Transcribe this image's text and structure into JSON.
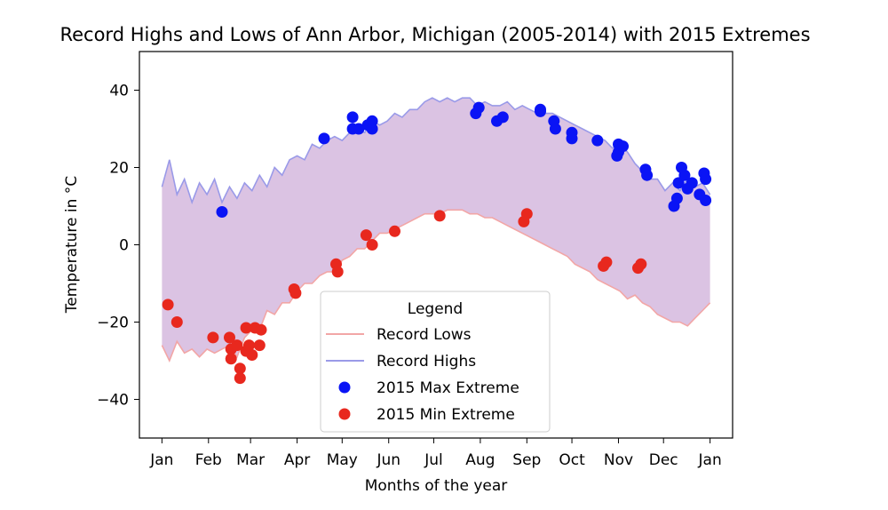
{
  "chart_data": {
    "type": "line",
    "title": "Record Highs and Lows of Ann Arbor, Michigan (2005-2014) with 2015 Extremes",
    "xlabel": "Months of the year",
    "ylabel": "Temperature in °C",
    "xlim": [
      -15,
      380
    ],
    "ylim": [
      -50,
      50
    ],
    "x_ticks": [
      {
        "day": 0,
        "label": "Jan"
      },
      {
        "day": 31,
        "label": "Feb"
      },
      {
        "day": 59,
        "label": "Mar"
      },
      {
        "day": 90,
        "label": "Apr"
      },
      {
        "day": 120,
        "label": "May"
      },
      {
        "day": 151,
        "label": "Jun"
      },
      {
        "day": 181,
        "label": "Jul"
      },
      {
        "day": 212,
        "label": "Aug"
      },
      {
        "day": 243,
        "label": "Sep"
      },
      {
        "day": 273,
        "label": "Oct"
      },
      {
        "day": 304,
        "label": "Nov"
      },
      {
        "day": 334,
        "label": "Dec"
      },
      {
        "day": 365,
        "label": "Jan"
      }
    ],
    "y_ticks": [
      -40,
      -20,
      0,
      20,
      40
    ],
    "colors": {
      "low_line": "#f2a6a6",
      "high_line": "#9a9ae8",
      "fill": "#d7bce0",
      "max_point": "#0a14f5",
      "min_point": "#e8281e"
    },
    "legend": {
      "title": "Legend",
      "placement": "lower-center",
      "entries": [
        "Record Lows",
        "Record Highs",
        "2015 Max Extreme",
        "2015 Min Extreme"
      ]
    },
    "series": [
      {
        "name": "Record Highs",
        "points": [
          [
            0,
            15
          ],
          [
            5,
            22
          ],
          [
            10,
            13
          ],
          [
            15,
            17
          ],
          [
            20,
            11
          ],
          [
            25,
            16
          ],
          [
            30,
            13
          ],
          [
            35,
            17
          ],
          [
            40,
            11
          ],
          [
            45,
            15
          ],
          [
            50,
            12
          ],
          [
            55,
            16
          ],
          [
            60,
            14
          ],
          [
            65,
            18
          ],
          [
            70,
            15
          ],
          [
            75,
            20
          ],
          [
            80,
            18
          ],
          [
            85,
            22
          ],
          [
            90,
            23
          ],
          [
            95,
            22
          ],
          [
            100,
            26
          ],
          [
            105,
            25
          ],
          [
            110,
            27
          ],
          [
            115,
            28
          ],
          [
            120,
            27
          ],
          [
            125,
            29
          ],
          [
            130,
            30
          ],
          [
            135,
            29
          ],
          [
            140,
            32
          ],
          [
            145,
            31
          ],
          [
            150,
            32
          ],
          [
            155,
            34
          ],
          [
            160,
            33
          ],
          [
            165,
            35
          ],
          [
            170,
            35
          ],
          [
            175,
            37
          ],
          [
            180,
            38
          ],
          [
            185,
            37
          ],
          [
            190,
            38
          ],
          [
            195,
            37
          ],
          [
            200,
            38
          ],
          [
            205,
            38
          ],
          [
            210,
            36
          ],
          [
            215,
            37
          ],
          [
            220,
            36
          ],
          [
            225,
            36
          ],
          [
            230,
            37
          ],
          [
            235,
            35
          ],
          [
            240,
            36
          ],
          [
            245,
            35
          ],
          [
            250,
            34
          ],
          [
            255,
            34
          ],
          [
            260,
            34
          ],
          [
            265,
            33
          ],
          [
            270,
            32
          ],
          [
            275,
            31
          ],
          [
            280,
            30
          ],
          [
            285,
            29
          ],
          [
            290,
            28
          ],
          [
            295,
            27
          ],
          [
            300,
            25
          ],
          [
            305,
            26
          ],
          [
            310,
            24
          ],
          [
            315,
            21
          ],
          [
            320,
            19
          ],
          [
            325,
            17
          ],
          [
            330,
            17
          ],
          [
            335,
            14
          ],
          [
            340,
            16
          ],
          [
            345,
            14
          ],
          [
            350,
            17
          ],
          [
            355,
            15
          ],
          [
            360,
            16
          ],
          [
            365,
            13
          ]
        ]
      },
      {
        "name": "Record Lows",
        "points": [
          [
            0,
            -26
          ],
          [
            5,
            -30
          ],
          [
            10,
            -25
          ],
          [
            15,
            -28
          ],
          [
            20,
            -27
          ],
          [
            25,
            -29
          ],
          [
            30,
            -27
          ],
          [
            35,
            -28
          ],
          [
            40,
            -27
          ],
          [
            45,
            -26
          ],
          [
            50,
            -29
          ],
          [
            55,
            -24
          ],
          [
            60,
            -22
          ],
          [
            65,
            -22
          ],
          [
            70,
            -17
          ],
          [
            75,
            -18
          ],
          [
            80,
            -15
          ],
          [
            85,
            -15
          ],
          [
            90,
            -12
          ],
          [
            95,
            -10
          ],
          [
            100,
            -10
          ],
          [
            105,
            -8
          ],
          [
            110,
            -7
          ],
          [
            115,
            -7
          ],
          [
            120,
            -4
          ],
          [
            125,
            -3
          ],
          [
            130,
            -1
          ],
          [
            135,
            -1
          ],
          [
            140,
            1
          ],
          [
            145,
            3
          ],
          [
            150,
            3
          ],
          [
            155,
            4
          ],
          [
            160,
            5
          ],
          [
            165,
            6
          ],
          [
            170,
            7
          ],
          [
            175,
            8
          ],
          [
            180,
            8
          ],
          [
            185,
            8
          ],
          [
            190,
            9
          ],
          [
            195,
            9
          ],
          [
            200,
            9
          ],
          [
            205,
            8
          ],
          [
            210,
            8
          ],
          [
            215,
            7
          ],
          [
            220,
            7
          ],
          [
            225,
            6
          ],
          [
            230,
            5
          ],
          [
            235,
            4
          ],
          [
            240,
            3
          ],
          [
            245,
            2
          ],
          [
            250,
            1
          ],
          [
            255,
            0
          ],
          [
            260,
            -1
          ],
          [
            265,
            -2
          ],
          [
            270,
            -3
          ],
          [
            275,
            -5
          ],
          [
            280,
            -6
          ],
          [
            285,
            -7
          ],
          [
            290,
            -9
          ],
          [
            295,
            -10
          ],
          [
            300,
            -11
          ],
          [
            305,
            -12
          ],
          [
            310,
            -14
          ],
          [
            315,
            -13
          ],
          [
            320,
            -15
          ],
          [
            325,
            -16
          ],
          [
            330,
            -18
          ],
          [
            335,
            -19
          ],
          [
            340,
            -20
          ],
          [
            345,
            -20
          ],
          [
            350,
            -21
          ],
          [
            355,
            -19
          ],
          [
            360,
            -17
          ],
          [
            365,
            -15
          ]
        ]
      },
      {
        "name": "2015 Max Extreme",
        "points": [
          [
            40,
            8.5
          ],
          [
            108,
            27.5
          ],
          [
            127,
            33
          ],
          [
            127,
            30
          ],
          [
            131,
            30
          ],
          [
            137,
            31
          ],
          [
            140,
            32
          ],
          [
            140,
            30
          ],
          [
            209,
            34
          ],
          [
            211,
            35.5
          ],
          [
            223,
            32
          ],
          [
            227,
            33
          ],
          [
            252,
            35
          ],
          [
            252,
            34.5
          ],
          [
            261,
            32
          ],
          [
            262,
            30
          ],
          [
            273,
            29
          ],
          [
            273,
            27.5
          ],
          [
            290,
            27
          ],
          [
            304,
            26
          ],
          [
            304,
            24
          ],
          [
            307,
            25.5
          ],
          [
            303,
            23
          ],
          [
            322,
            19.5
          ],
          [
            323,
            18
          ],
          [
            341,
            10
          ],
          [
            343,
            12
          ],
          [
            344,
            16
          ],
          [
            346,
            20
          ],
          [
            348,
            18
          ],
          [
            350,
            14.5
          ],
          [
            353,
            16
          ],
          [
            358,
            13
          ],
          [
            361,
            18.5
          ],
          [
            362,
            17
          ],
          [
            362,
            11.5
          ]
        ]
      },
      {
        "name": "2015 Min Extreme",
        "points": [
          [
            4,
            -15.5
          ],
          [
            10,
            -20
          ],
          [
            34,
            -24
          ],
          [
            45,
            -24
          ],
          [
            46,
            -27
          ],
          [
            46,
            -29.5
          ],
          [
            50,
            -26
          ],
          [
            52,
            -32
          ],
          [
            52,
            -34.5
          ],
          [
            56,
            -27.5
          ],
          [
            56,
            -21.5
          ],
          [
            58,
            -26
          ],
          [
            60,
            -28.5
          ],
          [
            62,
            -21.5
          ],
          [
            65,
            -26
          ],
          [
            66,
            -22
          ],
          [
            88,
            -11.5
          ],
          [
            89,
            -12.5
          ],
          [
            116,
            -5
          ],
          [
            117,
            -7
          ],
          [
            136,
            2.5
          ],
          [
            140,
            0
          ],
          [
            155,
            3.5
          ],
          [
            185,
            7.5
          ],
          [
            241,
            6
          ],
          [
            243,
            8
          ],
          [
            294,
            -5.5
          ],
          [
            296,
            -4.5
          ],
          [
            317,
            -6
          ],
          [
            319,
            -5
          ]
        ]
      }
    ]
  }
}
